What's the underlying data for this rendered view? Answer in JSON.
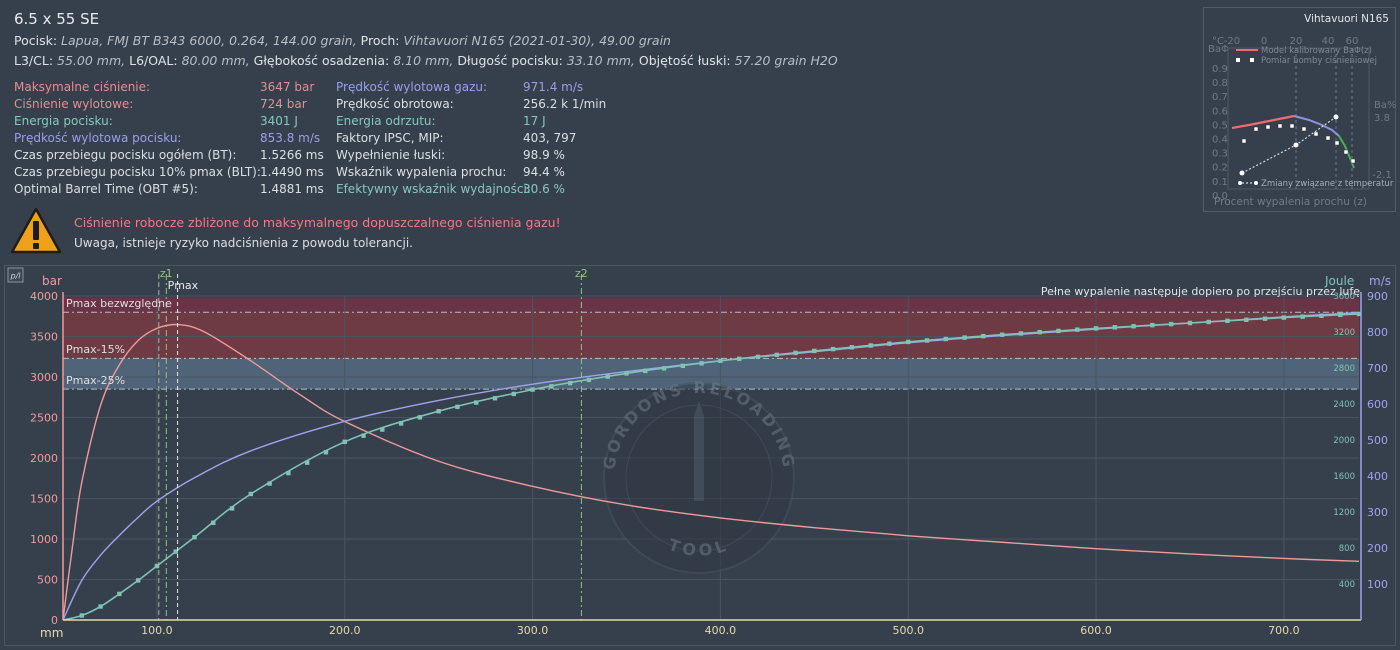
{
  "header": {
    "title": "6.5 x 55 SE",
    "line1": {
      "bullet_label": "Pocisk:",
      "bullet_value": "Lapua, FMJ BT B343 6000, 0.264, 144.00 grain,",
      "powder_label": "Proch:",
      "powder_value": "Vihtavuori N165 (2021-01-30), 49.00 grain"
    },
    "line2": {
      "cl_label": "L3/CL:",
      "cl_value": "55.00 mm,",
      "oal_label": "L6/OAL:",
      "oal_value": "80.00 mm,",
      "depth_label": "Głębokość osadzenia:",
      "depth_value": "8.10 mm,",
      "len_label": "Długość pocisku:",
      "len_value": "33.10 mm,",
      "vol_label": "Objętość łuski:",
      "vol_value": "57.20 grain H2O"
    }
  },
  "stats": {
    "col1": [
      {
        "label": "Maksymalne ciśnienie:",
        "value": "3647 bar",
        "color": "red"
      },
      {
        "label": "Ciśnienie wylotowe:",
        "value": "724 bar",
        "color": "red"
      },
      {
        "label": "Energia pocisku:",
        "value": "3401 J",
        "color": "teal"
      },
      {
        "label": "Prędkość wylotowa pocisku:",
        "value": "853.8 m/s",
        "color": "blue"
      },
      {
        "label": "Czas przebiegu pocisku ogółem (BT):",
        "value": "1.5266 ms",
        "color": "white"
      },
      {
        "label": "Czas przebiegu pocisku 10% pmax (BLT):",
        "value": "1.4490 ms",
        "color": "white"
      },
      {
        "label": "Optimal Barrel Time (OBT #5):",
        "value": "1.4881 ms",
        "color": "white"
      }
    ],
    "col2": [
      {
        "label": "Prędkość wylotowa gazu:",
        "value": "971.4 m/s",
        "color": "blue"
      },
      {
        "label": "Prędkość obrotowa:",
        "value": "256.2 k 1/min",
        "color": "white"
      },
      {
        "label": "Energia odrzutu:",
        "value": "17 J",
        "color": "teal"
      },
      {
        "label": "Faktory IPSC, MIP:",
        "value": "403, 797",
        "color": "white"
      },
      {
        "label": "Wypełnienie łuski:",
        "value": "98.9 %",
        "color": "white"
      },
      {
        "label": "Wskaźnik wypalenia prochu:",
        "value": "94.4 %",
        "color": "white"
      },
      {
        "label": "Efektywny wskaźnik wydajności:",
        "value": "30.6 %",
        "color": "teal"
      }
    ]
  },
  "warning": {
    "icon": "warning-triangle-icon",
    "main": "Ciśnienie robocze zbliżone do maksymalnego dopuszczalnego ciśnienia gazu!",
    "sub": "Uwaga, istnieje ryzyko nadciśnienia z powodu tolerancji."
  },
  "mini_chart": {
    "title": "Vihtavuori N165",
    "temp_axis_label": "°C",
    "temp_ticks": [
      "-20",
      "0",
      "20",
      "40",
      "60"
    ],
    "left_axis_label": "BaΦ",
    "left_ticks": [
      "0.9",
      "0.8",
      "0.7",
      "0.6",
      "0.5",
      "0.4",
      "0.3",
      "0.2",
      "0.1",
      "0.0"
    ],
    "right_axis_label": "Ba%",
    "right_top": "3.8",
    "right_bottom": "-2.1",
    "legend_model": "Model kalibrowany BaΦ(z)",
    "legend_bomb": "Pomiar bomby ciśnieniowej",
    "legend_temp": "Zmiany związane z temperatur",
    "xlabel": "Procent wypalenia prochu (z)",
    "colors": {
      "model": "#ee6b6e",
      "model_tail": "#8f92e0",
      "temp": "#4caf50"
    }
  },
  "main_chart": {
    "toggle": "p/l",
    "left_unit": "bar",
    "right_unit_joule": "Joule",
    "right_unit_ms": "m/s",
    "x_unit": "mm",
    "zone_labels": {
      "abs": "Pmax bezwzględne",
      "p15": "Pmax-15%",
      "p25": "Pmax-25%"
    },
    "markers": {
      "z1": "z1",
      "pmax": "Pmax",
      "z2": "z2"
    },
    "note": "Pełne wypalenie następuje dopiero po przejściu przez lufę",
    "watermark_top": "GORDONS RELOADING",
    "watermark_bottom": "TOOL",
    "colors": {
      "pressure": "#ef9a9a",
      "velocity": "#9fa2ee",
      "energy": "#7fc3b5",
      "zone_abs": "#6a3447",
      "zone_p15": "#6e3b44",
      "zone_p25": "#4f6478"
    }
  },
  "chart_data": {
    "type": "line",
    "title": "",
    "xlabel": "mm",
    "ylabel": "bar",
    "xlim": [
      50,
      740
    ],
    "ylim": [
      0,
      4000
    ],
    "x_ticks": [
      "100.0",
      "200.0",
      "300.0",
      "400.0",
      "500.0",
      "600.0",
      "700.0"
    ],
    "y_ticks": [
      "0",
      "500",
      "1000",
      "1500",
      "2000",
      "2500",
      "3000",
      "3500",
      "4000"
    ],
    "y2_ticks_ms": [
      "100",
      "200",
      "300",
      "400",
      "500",
      "600",
      "700",
      "800",
      "900"
    ],
    "y2_ticks_joule": [
      "400",
      "800",
      "1200",
      "1600",
      "2000",
      "2400",
      "2800",
      "3200",
      "3600"
    ],
    "zones_bar": {
      "abs_top": 3980,
      "abs_bottom": 3800,
      "p15": 3230,
      "p25": 2850
    },
    "marker_x": {
      "z1": 105,
      "pmax": 111,
      "z2": 326,
      "other": 101
    },
    "series": [
      {
        "name": "Ciśnienie (bar)",
        "axis": "bar",
        "x": [
          50,
          55,
          60,
          70,
          80,
          90,
          100,
          111,
          125,
          150,
          175,
          200,
          250,
          300,
          350,
          400,
          450,
          500,
          550,
          600,
          650,
          700,
          740
        ],
        "values": [
          0,
          900,
          1700,
          2650,
          3150,
          3450,
          3600,
          3647,
          3560,
          3200,
          2800,
          2450,
          1960,
          1650,
          1420,
          1260,
          1140,
          1040,
          960,
          880,
          815,
          760,
          724
        ]
      },
      {
        "name": "Prędkość (m/s)",
        "axis": "ms",
        "x": [
          50,
          60,
          70,
          80,
          90,
          100,
          120,
          150,
          200,
          250,
          300,
          350,
          400,
          450,
          500,
          550,
          600,
          650,
          700,
          740
        ],
        "values": [
          0,
          110,
          180,
          235,
          285,
          330,
          395,
          470,
          552,
          610,
          655,
          690,
          720,
          745,
          770,
          790,
          808,
          825,
          842,
          854
        ]
      },
      {
        "name": "Energia (J)",
        "axis": "joule",
        "x": [
          50,
          60,
          70,
          80,
          90,
          100,
          120,
          150,
          200,
          250,
          300,
          350,
          400,
          450,
          500,
          550,
          600,
          650,
          700,
          740
        ],
        "values": [
          0,
          50,
          150,
          290,
          440,
          600,
          920,
          1400,
          1980,
          2320,
          2560,
          2740,
          2880,
          2990,
          3090,
          3170,
          3240,
          3300,
          3360,
          3401
        ]
      }
    ]
  }
}
